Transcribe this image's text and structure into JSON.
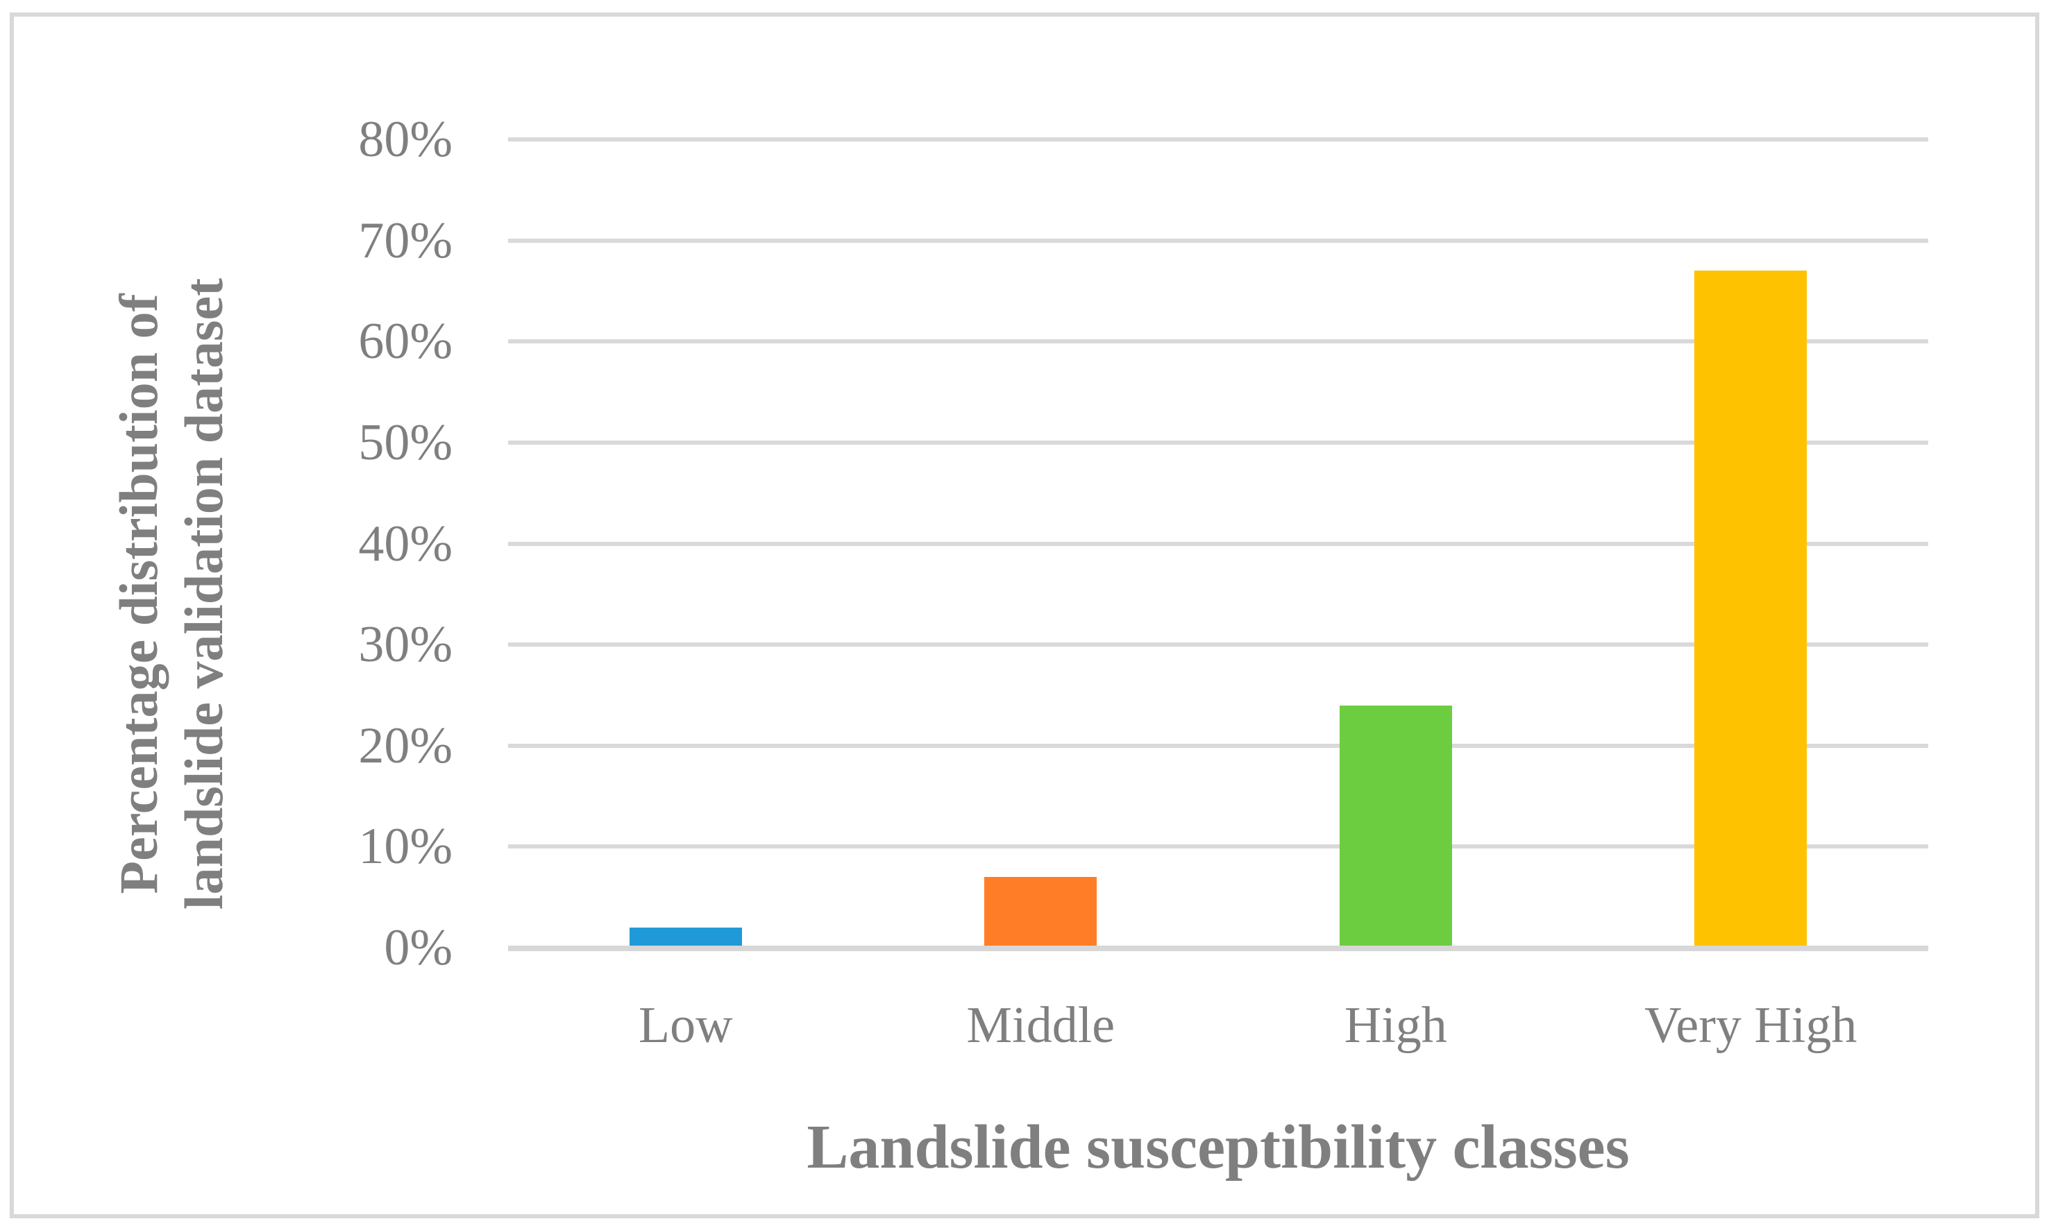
{
  "figure": {
    "border_color": "#d9d9d9",
    "background_color": "#ffffff"
  },
  "chart_data": {
    "type": "bar",
    "title": "",
    "categories": [
      "Low",
      "Middle",
      "High",
      "Very High"
    ],
    "values": [
      2,
      7,
      24,
      67
    ],
    "value_unit": "%",
    "series": [
      {
        "name": "Percentage distribution of landslide validation dataset",
        "values": [
          2,
          7,
          24,
          67
        ]
      }
    ],
    "bar_colors": [
      "#2099d8",
      "#ff7d26",
      "#6dcd40",
      "#ffc200"
    ],
    "xlabel": "Landslide susceptibility classes",
    "ylabel": "Percentage distribution of landslide validation dataset",
    "ylabel_lines": [
      "Percentage distribution of",
      "landslide validation dataset"
    ],
    "ylim": [
      0,
      80
    ],
    "ytick_step": 10,
    "ytick_labels": [
      "0%",
      "10%",
      "20%",
      "30%",
      "40%",
      "50%",
      "60%",
      "70%",
      "80%"
    ],
    "grid": true,
    "legend": "none",
    "text_color": "#7f7f7f",
    "gridline_color": "#d9d9d9",
    "axisline_color": "#d7d7d7"
  }
}
